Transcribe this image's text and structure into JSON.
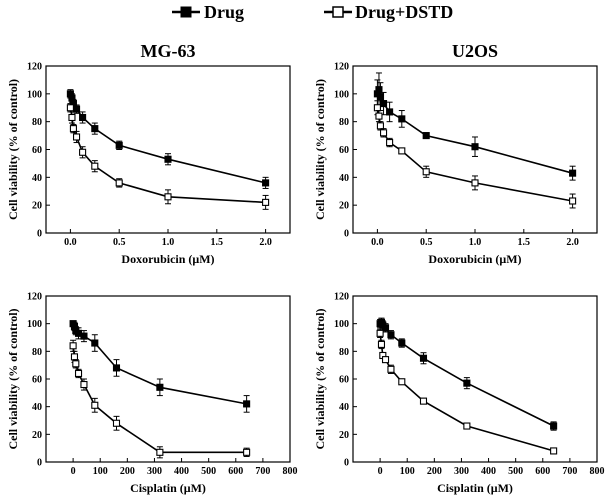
{
  "legend": {
    "drug_label": "Drug",
    "combo_label": "Drug+DSTD",
    "placement": "top-center"
  },
  "chart_data": [
    {
      "type": "line",
      "title": "MG-63",
      "xlabel": "Doxorubicin (μM)",
      "ylabel": "Cell viability (% of control)",
      "xlim": [
        -0.25,
        2.25
      ],
      "ylim": [
        0,
        120
      ],
      "xticks": [
        "0.0",
        "0.5",
        "1.0",
        "1.5",
        "2.0"
      ],
      "yticks": [
        "0",
        "20",
        "40",
        "60",
        "80",
        "100",
        "120"
      ],
      "series": [
        {
          "name": "Drug",
          "marker": "filled-square",
          "x": [
            0,
            0.016,
            0.031,
            0.063,
            0.125,
            0.25,
            0.5,
            1.0,
            2.0
          ],
          "y": [
            100,
            97,
            93,
            89,
            83,
            75,
            63,
            53,
            36
          ],
          "err": [
            3,
            3,
            3,
            3,
            4,
            4,
            3,
            4,
            4
          ]
        },
        {
          "name": "Drug+DSTD",
          "marker": "open-square",
          "x": [
            0,
            0.016,
            0.031,
            0.063,
            0.125,
            0.25,
            0.5,
            1.0,
            2.0
          ],
          "y": [
            90,
            83,
            75,
            69,
            58,
            48,
            36,
            26,
            22
          ],
          "err": [
            3,
            4,
            3,
            4,
            4,
            4,
            3,
            5,
            5
          ]
        }
      ]
    },
    {
      "type": "line",
      "title": "U2OS",
      "xlabel": "Doxorubicin (μM)",
      "ylabel": "Cell viability (% of control)",
      "xlim": [
        -0.25,
        2.25
      ],
      "ylim": [
        0,
        120
      ],
      "xticks": [
        "0.0",
        "0.5",
        "1.0",
        "1.5",
        "2.0"
      ],
      "yticks": [
        "0",
        "20",
        "40",
        "60",
        "80",
        "100",
        "120"
      ],
      "series": [
        {
          "name": "Drug",
          "marker": "filled-square",
          "x": [
            0,
            0.016,
            0.031,
            0.063,
            0.125,
            0.25,
            0.5,
            1.0,
            2.0
          ],
          "y": [
            100,
            103,
            98,
            93,
            87,
            82,
            70,
            62,
            43
          ],
          "err": [
            10,
            12,
            10,
            8,
            7,
            6,
            2,
            7,
            5
          ]
        },
        {
          "name": "Drug+DSTD",
          "marker": "open-square",
          "x": [
            0,
            0.016,
            0.031,
            0.063,
            0.125,
            0.25,
            0.5,
            1.0,
            2.0
          ],
          "y": [
            90,
            84,
            77,
            72,
            65,
            59,
            44,
            36,
            23
          ],
          "err": [
            5,
            4,
            3,
            3,
            3,
            2,
            4,
            5,
            5
          ]
        }
      ]
    },
    {
      "type": "line",
      "title": "",
      "xlabel": "Cisplatin (μM)",
      "ylabel": "Cell viability (% of control)",
      "xlim": [
        -100,
        800
      ],
      "ylim": [
        0,
        120
      ],
      "xticks": [
        "0",
        "100",
        "200",
        "300",
        "400",
        "500",
        "600",
        "700",
        "800"
      ],
      "yticks": [
        "0",
        "20",
        "40",
        "60",
        "80",
        "100",
        "120"
      ],
      "series": [
        {
          "name": "Drug",
          "marker": "filled-square",
          "x": [
            0,
            5,
            10,
            20,
            40,
            80,
            160,
            320,
            640
          ],
          "y": [
            100,
            98,
            95,
            93,
            91,
            86,
            68,
            54,
            42
          ],
          "err": [
            2,
            3,
            3,
            4,
            4,
            6,
            6,
            6,
            6
          ]
        },
        {
          "name": "Drug+DSTD",
          "marker": "open-square",
          "x": [
            0,
            5,
            10,
            20,
            40,
            80,
            160,
            320,
            640
          ],
          "y": [
            84,
            76,
            71,
            64,
            56,
            41,
            28,
            7,
            7
          ],
          "err": [
            4,
            4,
            3,
            3,
            4,
            5,
            5,
            4,
            3
          ]
        }
      ]
    },
    {
      "type": "line",
      "title": "",
      "xlabel": "Cisplatin (μM)",
      "ylabel": "Cell viability (% of control)",
      "xlim": [
        -100,
        800
      ],
      "ylim": [
        0,
        120
      ],
      "xticks": [
        "0",
        "100",
        "200",
        "300",
        "400",
        "500",
        "600",
        "700",
        "800"
      ],
      "yticks": [
        "0",
        "20",
        "40",
        "60",
        "80",
        "100",
        "120"
      ],
      "series": [
        {
          "name": "Drug",
          "marker": "filled-square",
          "x": [
            0,
            5,
            10,
            20,
            40,
            80,
            160,
            320,
            640
          ],
          "y": [
            100,
            101,
            99,
            97,
            92,
            86,
            75,
            57,
            26
          ],
          "err": [
            3,
            3,
            3,
            3,
            3,
            3,
            4,
            4,
            3
          ]
        },
        {
          "name": "Drug+DSTD",
          "marker": "open-square",
          "x": [
            0,
            5,
            10,
            20,
            40,
            80,
            160,
            320,
            640
          ],
          "y": [
            93,
            85,
            77,
            74,
            67,
            58,
            44,
            26,
            8
          ],
          "err": [
            3,
            3,
            2,
            2,
            3,
            2,
            2,
            2,
            2
          ]
        }
      ]
    }
  ]
}
